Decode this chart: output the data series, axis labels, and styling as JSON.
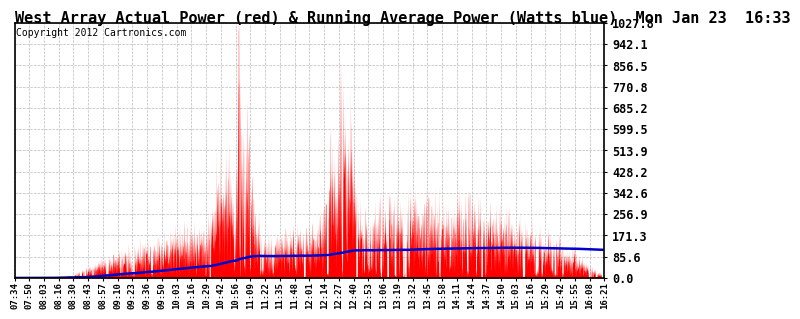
{
  "title": "West Array Actual Power (red) & Running Average Power (Watts blue)  Mon Jan 23  16:33",
  "copyright": "Copyright 2012 Cartronics.com",
  "bg_color": "#ffffff",
  "plot_bg_color": "#ffffff",
  "grid_color": "#bbbbbb",
  "yticks": [
    0.0,
    85.6,
    171.3,
    256.9,
    342.6,
    428.2,
    513.9,
    599.5,
    685.2,
    770.8,
    856.5,
    942.1,
    1027.8
  ],
  "ymax": 1027.8,
  "xtick_labels": [
    "07:34",
    "07:50",
    "08:03",
    "08:16",
    "08:30",
    "08:43",
    "08:57",
    "09:10",
    "09:23",
    "09:36",
    "09:50",
    "10:03",
    "10:16",
    "10:29",
    "10:42",
    "10:56",
    "11:09",
    "11:22",
    "11:35",
    "11:48",
    "12:01",
    "12:14",
    "12:27",
    "12:40",
    "12:53",
    "13:06",
    "13:19",
    "13:32",
    "13:45",
    "13:58",
    "14:11",
    "14:24",
    "14:37",
    "14:50",
    "15:03",
    "15:16",
    "15:29",
    "15:42",
    "15:55",
    "16:08",
    "16:21"
  ],
  "red_color": "#ff0000",
  "blue_color": "#0000cc",
  "title_fontsize": 11,
  "copyright_fontsize": 7,
  "tick_fontsize": 6.5,
  "ytick_fontsize": 8.5
}
